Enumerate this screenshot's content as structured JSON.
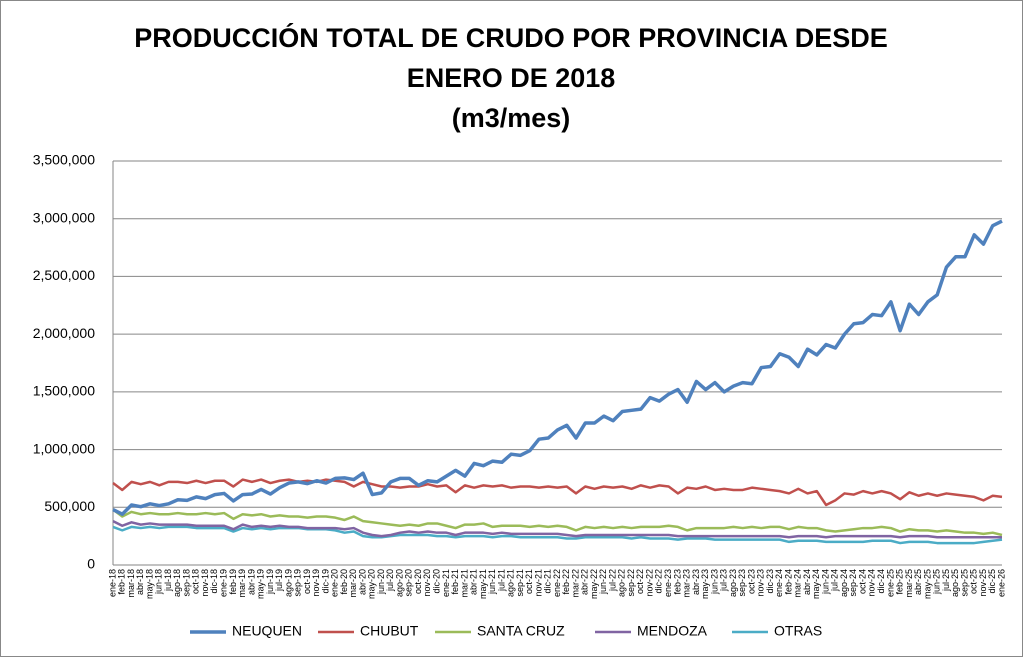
{
  "chart_data": {
    "type": "line",
    "title_lines": [
      "PRODUCCIÓN TOTAL DE CRUDO POR PROVINCIA DESDE",
      "ENERO DE 2018",
      "(m3/mes)"
    ],
    "categories": [
      "ene-18",
      "feb-18",
      "mar-18",
      "abr-18",
      "may-18",
      "jun-18",
      "jul-18",
      "ago-18",
      "sep-18",
      "oct-18",
      "nov-18",
      "dic-18",
      "ene-19",
      "feb-19",
      "mar-19",
      "abr-19",
      "may-19",
      "jun-19",
      "jul-19",
      "ago-19",
      "sep-19",
      "oct-19",
      "nov-19",
      "dic-19",
      "ene-20",
      "feb-20",
      "mar-20",
      "abr-20",
      "may-20",
      "jun-20",
      "jul-20",
      "ago-20",
      "sep-20",
      "oct-20",
      "nov-20",
      "dic-20",
      "ene-21",
      "feb-21",
      "mar-21",
      "abr-21",
      "may-21",
      "jun-21",
      "jul-21",
      "ago-21",
      "sep-21",
      "oct-21",
      "nov-21",
      "dic-21",
      "ene-22",
      "feb-22",
      "mar-22",
      "abr-22",
      "may-22",
      "jun-22",
      "jul-22",
      "ago-22",
      "sep-22",
      "oct-22",
      "nov-22",
      "dic-22",
      "ene-23",
      "feb-23",
      "mar-23",
      "abr-23",
      "may-23",
      "jun-23",
      "jul-23",
      "ago-23",
      "sep-23",
      "oct-23",
      "nov-23",
      "dic-23",
      "ene-24",
      "feb-24",
      "mar-24",
      "abr-24",
      "may-24",
      "jun-24",
      "jul-24",
      "ago-24",
      "sep-24",
      "oct-24",
      "nov-24",
      "dic-24",
      "ene-25",
      "feb-25",
      "mar-25",
      "abr-25",
      "may-25",
      "jun-25",
      "jul-25",
      "ago-25",
      "sep-25",
      "oct-25",
      "nov-25",
      "dic-25",
      "ene-26"
    ],
    "series": [
      {
        "name": "NEUQUEN",
        "color": "#4f81bd",
        "width": 3.5,
        "values": [
          480000,
          440000,
          520000,
          505000,
          530000,
          515000,
          530000,
          565000,
          560000,
          590000,
          575000,
          610000,
          620000,
          555000,
          610000,
          615000,
          655000,
          615000,
          670000,
          710000,
          720000,
          705000,
          730000,
          710000,
          750000,
          755000,
          740000,
          795000,
          610000,
          625000,
          720000,
          750000,
          750000,
          690000,
          730000,
          720000,
          770000,
          820000,
          770000,
          880000,
          860000,
          900000,
          890000,
          960000,
          950000,
          990000,
          1090000,
          1100000,
          1170000,
          1210000,
          1100000,
          1230000,
          1230000,
          1290000,
          1250000,
          1330000,
          1340000,
          1350000,
          1450000,
          1420000,
          1480000,
          1520000,
          1410000,
          1590000,
          1520000,
          1580000,
          1500000,
          1550000,
          1580000,
          1570000,
          1710000,
          1720000,
          1830000,
          1800000,
          1720000,
          1870000,
          1820000,
          1910000,
          1880000,
          2000000,
          2090000,
          2100000,
          2170000,
          2160000,
          2280000,
          2030000,
          2260000,
          2170000,
          2280000,
          2340000,
          2580000,
          2670000,
          2670000,
          2860000,
          2780000,
          2940000,
          2980000
        ]
      },
      {
        "name": "CHUBUT",
        "color": "#c0504d",
        "width": 2.5,
        "values": [
          710000,
          650000,
          720000,
          700000,
          720000,
          690000,
          720000,
          720000,
          710000,
          730000,
          710000,
          730000,
          730000,
          680000,
          740000,
          720000,
          740000,
          710000,
          730000,
          740000,
          720000,
          730000,
          720000,
          740000,
          730000,
          720000,
          680000,
          720000,
          700000,
          680000,
          680000,
          670000,
          680000,
          680000,
          700000,
          680000,
          690000,
          630000,
          690000,
          670000,
          690000,
          680000,
          690000,
          670000,
          680000,
          680000,
          670000,
          680000,
          670000,
          680000,
          620000,
          680000,
          660000,
          680000,
          670000,
          680000,
          660000,
          690000,
          670000,
          690000,
          680000,
          620000,
          670000,
          660000,
          680000,
          650000,
          660000,
          650000,
          650000,
          670000,
          660000,
          650000,
          640000,
          620000,
          660000,
          620000,
          640000,
          520000,
          560000,
          620000,
          610000,
          640000,
          620000,
          640000,
          620000,
          570000,
          630000,
          600000,
          620000,
          600000,
          620000,
          610000,
          600000,
          590000,
          560000,
          600000,
          590000
        ]
      },
      {
        "name": "SANTA CRUZ",
        "color": "#9bbb59",
        "width": 2.5,
        "values": [
          480000,
          420000,
          460000,
          440000,
          450000,
          440000,
          440000,
          450000,
          440000,
          440000,
          450000,
          440000,
          450000,
          400000,
          440000,
          430000,
          440000,
          420000,
          430000,
          420000,
          420000,
          410000,
          420000,
          420000,
          410000,
          390000,
          420000,
          380000,
          370000,
          360000,
          350000,
          340000,
          350000,
          340000,
          360000,
          360000,
          340000,
          320000,
          350000,
          350000,
          360000,
          330000,
          340000,
          340000,
          340000,
          330000,
          340000,
          330000,
          340000,
          330000,
          300000,
          330000,
          320000,
          330000,
          320000,
          330000,
          320000,
          330000,
          330000,
          330000,
          340000,
          330000,
          300000,
          320000,
          320000,
          320000,
          320000,
          330000,
          320000,
          330000,
          320000,
          330000,
          330000,
          310000,
          330000,
          320000,
          320000,
          300000,
          290000,
          300000,
          310000,
          320000,
          320000,
          330000,
          320000,
          290000,
          310000,
          300000,
          300000,
          290000,
          300000,
          290000,
          280000,
          280000,
          270000,
          280000,
          260000
        ]
      },
      {
        "name": "MENDOZA",
        "color": "#8064a2",
        "width": 2.5,
        "values": [
          380000,
          340000,
          370000,
          350000,
          360000,
          350000,
          350000,
          350000,
          350000,
          340000,
          340000,
          340000,
          340000,
          310000,
          350000,
          330000,
          340000,
          330000,
          340000,
          330000,
          330000,
          320000,
          320000,
          320000,
          320000,
          310000,
          320000,
          280000,
          260000,
          250000,
          260000,
          280000,
          290000,
          280000,
          290000,
          280000,
          280000,
          260000,
          280000,
          280000,
          280000,
          270000,
          280000,
          270000,
          270000,
          270000,
          270000,
          270000,
          270000,
          260000,
          250000,
          260000,
          260000,
          260000,
          260000,
          260000,
          260000,
          260000,
          260000,
          260000,
          260000,
          250000,
          250000,
          250000,
          250000,
          250000,
          250000,
          250000,
          250000,
          250000,
          250000,
          250000,
          250000,
          240000,
          250000,
          250000,
          250000,
          240000,
          250000,
          250000,
          250000,
          250000,
          250000,
          250000,
          250000,
          240000,
          250000,
          250000,
          250000,
          240000,
          240000,
          240000,
          240000,
          240000,
          240000,
          240000,
          240000
        ]
      },
      {
        "name": "OTRAS",
        "color": "#4bacc6",
        "width": 2.5,
        "values": [
          330000,
          300000,
          330000,
          320000,
          330000,
          320000,
          330000,
          330000,
          330000,
          320000,
          320000,
          320000,
          320000,
          290000,
          320000,
          310000,
          320000,
          310000,
          320000,
          320000,
          320000,
          310000,
          310000,
          310000,
          300000,
          280000,
          290000,
          250000,
          240000,
          240000,
          250000,
          260000,
          260000,
          260000,
          260000,
          250000,
          250000,
          240000,
          250000,
          250000,
          250000,
          240000,
          250000,
          250000,
          240000,
          240000,
          240000,
          240000,
          240000,
          230000,
          230000,
          240000,
          240000,
          240000,
          240000,
          240000,
          230000,
          240000,
          230000,
          230000,
          230000,
          220000,
          230000,
          230000,
          230000,
          220000,
          220000,
          220000,
          220000,
          220000,
          220000,
          220000,
          220000,
          200000,
          210000,
          210000,
          210000,
          200000,
          200000,
          200000,
          200000,
          200000,
          210000,
          210000,
          210000,
          190000,
          200000,
          200000,
          200000,
          190000,
          190000,
          190000,
          190000,
          190000,
          200000,
          210000,
          220000
        ]
      }
    ],
    "ylim": [
      0,
      3500000
    ],
    "yticks": [
      0,
      {
        "value": 500000,
        "label": "500,000"
      },
      {
        "value": 1000000,
        "label": "1,000,000"
      },
      {
        "value": 1500000,
        "label": "1,500,000"
      },
      {
        "value": 2000000,
        "label": "2,000,000"
      },
      {
        "value": 2500000,
        "label": "2,500,000"
      },
      {
        "value": 3000000,
        "label": "3,000,000"
      },
      {
        "value": 3500000,
        "label": "3,500,000"
      }
    ],
    "grid": true,
    "legend": "bottom"
  }
}
